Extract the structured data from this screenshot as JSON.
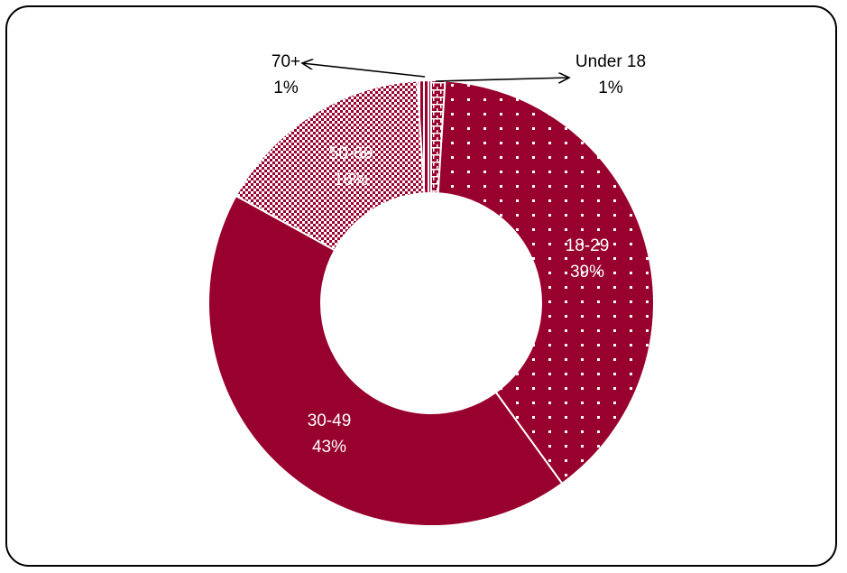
{
  "chart_data": {
    "type": "pie",
    "variant": "donut",
    "slices": [
      {
        "category": "Under 18",
        "percent_label": "1%",
        "value": 1,
        "color": "#98002e",
        "pattern": "brick"
      },
      {
        "category": "18-29",
        "percent_label": "39%",
        "value": 39,
        "color": "#98002e",
        "pattern": "dotted"
      },
      {
        "category": "30-49",
        "percent_label": "43%",
        "value": 43,
        "color": "#98002e",
        "pattern": "solid"
      },
      {
        "category": "50-69",
        "percent_label": "16%",
        "value": 16,
        "color": "#98002e",
        "pattern": "checker"
      },
      {
        "category": "70+",
        "percent_label": "1%",
        "value": 1,
        "color": "#98002e",
        "pattern": "vertical-lines"
      }
    ],
    "legend": "none"
  }
}
